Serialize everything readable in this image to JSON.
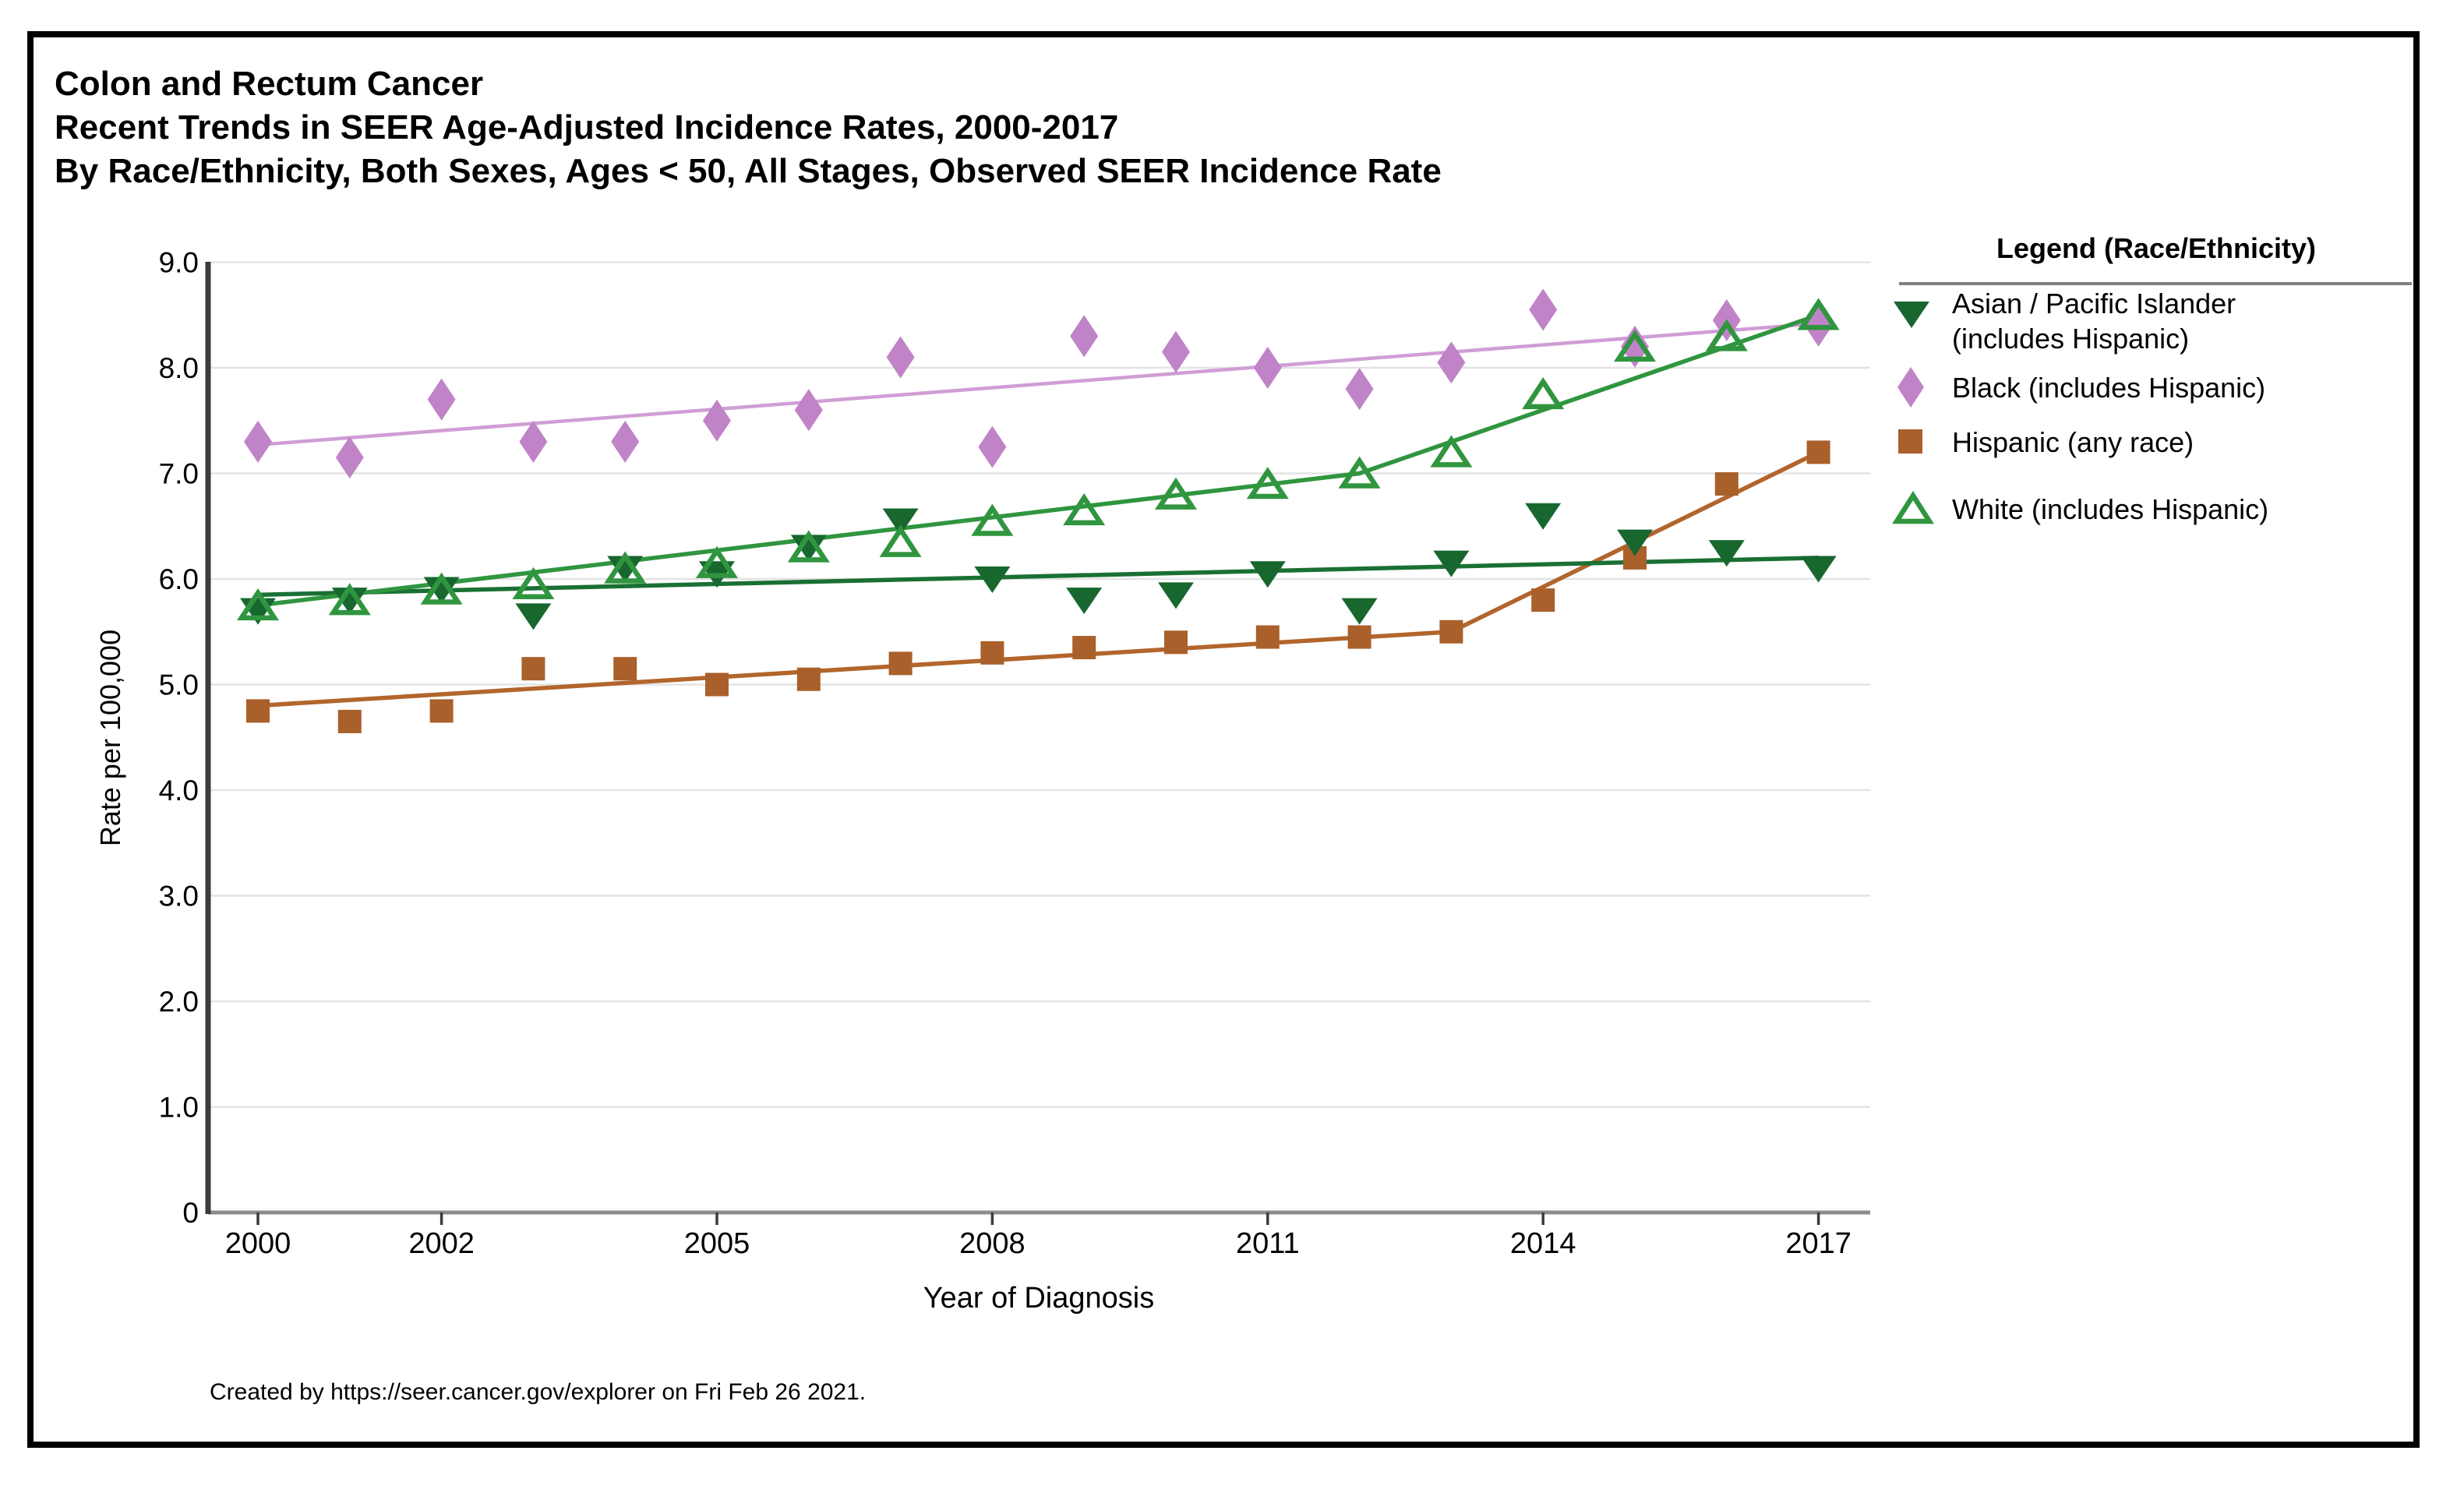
{
  "page": {
    "background": "#ffffff",
    "border_color": "#000000"
  },
  "header": {
    "title_line1": "Colon and Rectum Cancer",
    "title_line2": "Recent Trends in SEER Age-Adjusted Incidence Rates, 2000-2017",
    "title_line3": "By Race/Ethnicity, Both Sexes, Ages < 50, All Stages, Observed SEER Incidence Rate"
  },
  "footer": {
    "credit": "Created by https://seer.cancer.gov/explorer on Fri Feb 26 2021."
  },
  "legend": {
    "title": "Legend (Race/Ethnicity)",
    "items": [
      {
        "line1": "Asian / Pacific Islander",
        "line2": "(includes Hispanic)",
        "marker": "triangle-down-filled",
        "color": "#17672f"
      },
      {
        "line1": "Black (includes Hispanic)",
        "line2": "",
        "marker": "diamond-filled",
        "color": "#c083c8"
      },
      {
        "line1": "Hispanic (any race)",
        "line2": "",
        "marker": "square-filled",
        "color": "#a9602a"
      },
      {
        "line1": "White (includes Hispanic)",
        "line2": "",
        "marker": "triangle-up-open",
        "color": "#30953f"
      }
    ]
  },
  "chart_data": {
    "type": "scatter",
    "subtype": "observed-points-with-joinpoint-trend-lines",
    "xlabel": "Year of Diagnosis",
    "ylabel": "Rate per 100,000",
    "xlim": [
      1999.5,
      2017.6
    ],
    "ylim": [
      0,
      9
    ],
    "grid": true,
    "legend_position": "right",
    "x_ticks": [
      2000,
      2002,
      2005,
      2008,
      2011,
      2014,
      2017
    ],
    "y_tick_labels": [
      "0",
      "1.0",
      "2.0",
      "3.0",
      "4.0",
      "5.0",
      "6.0",
      "7.0",
      "8.0",
      "9.0"
    ],
    "years": [
      2000,
      2001,
      2002,
      2003,
      2004,
      2005,
      2006,
      2007,
      2008,
      2009,
      2010,
      2011,
      2012,
      2013,
      2014,
      2015,
      2016,
      2017
    ],
    "series": [
      {
        "name": "Asian / Pacific Islander (includes Hispanic)",
        "marker": "triangle-down-filled",
        "color": "#17672f",
        "line_color": "#1a7034",
        "values": [
          5.7,
          5.8,
          5.9,
          5.65,
          6.1,
          6.05,
          6.3,
          6.55,
          6.0,
          5.8,
          5.85,
          6.05,
          5.7,
          6.15,
          6.6,
          6.35,
          6.25,
          6.1
        ],
        "trend": [
          [
            2000,
            5.85
          ],
          [
            2017,
            6.2
          ]
        ]
      },
      {
        "name": "Black (includes Hispanic)",
        "marker": "diamond-filled",
        "color": "#c083c8",
        "line_color": "#d09dd6",
        "values": [
          7.3,
          7.15,
          7.7,
          7.3,
          7.3,
          7.5,
          7.6,
          8.1,
          7.25,
          8.3,
          8.15,
          8.0,
          7.8,
          8.05,
          8.55,
          8.2,
          8.45,
          8.4
        ],
        "trend": [
          [
            2000,
            7.27
          ],
          [
            2017,
            8.42
          ]
        ]
      },
      {
        "name": "Hispanic (any race)",
        "marker": "square-filled",
        "color": "#a9602a",
        "line_color": "#b2652c",
        "values": [
          4.75,
          4.65,
          4.75,
          5.15,
          5.15,
          5.0,
          5.05,
          5.2,
          5.3,
          5.35,
          5.4,
          5.45,
          5.45,
          5.5,
          5.8,
          6.2,
          6.9,
          7.2
        ],
        "trend": [
          [
            2000,
            4.8
          ],
          [
            2013,
            5.5
          ],
          [
            2017,
            7.2
          ]
        ]
      },
      {
        "name": "White (includes Hispanic)",
        "marker": "triangle-up-open",
        "color": "#30953f",
        "line_color": "#30953f",
        "values": [
          5.75,
          5.8,
          5.9,
          5.95,
          6.1,
          6.15,
          6.3,
          6.35,
          6.55,
          6.65,
          6.8,
          6.9,
          7.0,
          7.2,
          7.75,
          8.2,
          8.3,
          8.5
        ],
        "trend": [
          [
            2000,
            5.75
          ],
          [
            2012,
            7.0
          ],
          [
            2017,
            8.5
          ]
        ]
      }
    ]
  },
  "style": {
    "gridline_color": "#e3e3e3",
    "x_axis_color": "#8c8c8c",
    "y_spine_color": "#3c3c3c",
    "tick_color": "#3c3c3c",
    "text_color": "#000000"
  }
}
